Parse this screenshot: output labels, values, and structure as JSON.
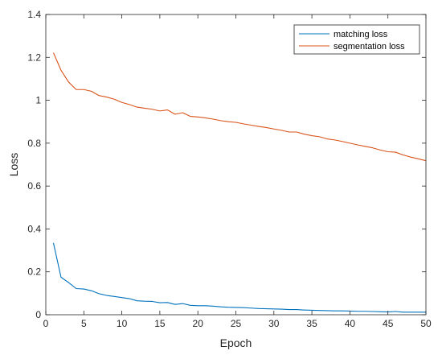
{
  "chart_data": {
    "type": "line",
    "title": "",
    "xlabel": "Epoch",
    "ylabel": "Loss",
    "xlim": [
      0,
      50
    ],
    "ylim": [
      0,
      1.4
    ],
    "x_ticks": [
      0,
      5,
      10,
      15,
      20,
      25,
      30,
      35,
      40,
      45,
      50
    ],
    "y_ticks": [
      0,
      0.2,
      0.4,
      0.6,
      0.8,
      1,
      1.2,
      1.4
    ],
    "y_tick_labels": [
      "0",
      "0.2",
      "0.4",
      "0.6",
      "0.8",
      "1",
      "1.2",
      "1.4"
    ],
    "grid": false,
    "legend_position": "top-right",
    "x": [
      1,
      2,
      3,
      4,
      5,
      6,
      7,
      8,
      9,
      10,
      11,
      12,
      13,
      14,
      15,
      16,
      17,
      18,
      19,
      20,
      21,
      22,
      23,
      24,
      25,
      26,
      27,
      28,
      29,
      30,
      31,
      32,
      33,
      34,
      35,
      36,
      37,
      38,
      39,
      40,
      41,
      42,
      43,
      44,
      45,
      46,
      47,
      48,
      49,
      50
    ],
    "series": [
      {
        "name": "matching loss",
        "color": "#0072BD",
        "values": [
          0.335,
          0.175,
          0.15,
          0.122,
          0.12,
          0.112,
          0.098,
          0.09,
          0.085,
          0.08,
          0.075,
          0.065,
          0.063,
          0.062,
          0.056,
          0.057,
          0.048,
          0.052,
          0.044,
          0.042,
          0.042,
          0.04,
          0.037,
          0.035,
          0.034,
          0.033,
          0.031,
          0.029,
          0.028,
          0.027,
          0.026,
          0.024,
          0.024,
          0.022,
          0.021,
          0.02,
          0.019,
          0.018,
          0.018,
          0.017,
          0.016,
          0.016,
          0.015,
          0.014,
          0.013,
          0.015,
          0.012,
          0.012,
          0.012,
          0.012
        ]
      },
      {
        "name": "segmentation loss",
        "color": "#D95319",
        "values": [
          1.222,
          1.14,
          1.085,
          1.05,
          1.05,
          1.042,
          1.022,
          1.015,
          1.005,
          0.99,
          0.98,
          0.968,
          0.963,
          0.958,
          0.95,
          0.955,
          0.935,
          0.942,
          0.925,
          0.922,
          0.918,
          0.912,
          0.905,
          0.9,
          0.897,
          0.89,
          0.884,
          0.878,
          0.873,
          0.866,
          0.86,
          0.852,
          0.852,
          0.842,
          0.835,
          0.83,
          0.82,
          0.815,
          0.808,
          0.8,
          0.792,
          0.785,
          0.778,
          0.768,
          0.76,
          0.758,
          0.745,
          0.735,
          0.727,
          0.718
        ]
      }
    ]
  }
}
